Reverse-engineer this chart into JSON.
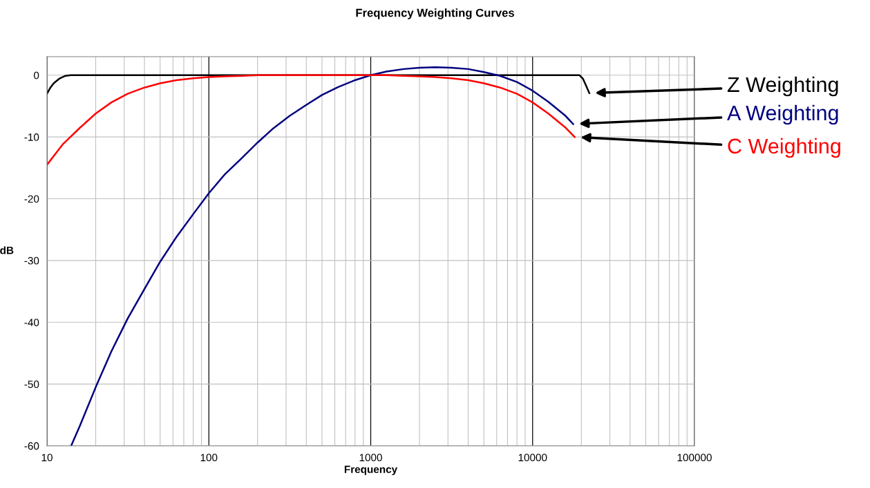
{
  "chart_data": {
    "type": "line",
    "title": "Frequency Weighting Curves",
    "xlabel": "Frequency",
    "ylabel": "dB",
    "log": "x",
    "xlim": [
      10,
      100000
    ],
    "xticks": [
      10,
      100,
      1000,
      10000,
      100000
    ],
    "ylim": [
      -60,
      3
    ],
    "yticks": [
      0,
      -10,
      -20,
      -30,
      -40,
      -50,
      -60
    ],
    "grid": true,
    "legend": false,
    "marker": "none",
    "line_style": "solid",
    "series": [
      {
        "name": "Z Weighting",
        "color": "#000000",
        "x": [
          10,
          10.5,
          11,
          12,
          13,
          14,
          16,
          20,
          50,
          100,
          1000,
          10000,
          18000,
          19500,
          20500,
          21500,
          22400
        ],
        "values": [
          -3,
          -2.0,
          -1.3,
          -0.5,
          -0.1,
          0,
          0,
          0,
          0,
          0,
          0,
          0,
          0,
          0,
          -0.6,
          -1.8,
          -2.9
        ]
      },
      {
        "name": "A Weighting",
        "color": "#000080",
        "x": [
          14.1,
          16,
          20,
          25,
          31.5,
          40,
          50,
          63,
          80,
          100,
          125,
          160,
          200,
          250,
          315,
          400,
          500,
          630,
          800,
          1000,
          1250,
          1600,
          2000,
          2500,
          3150,
          4000,
          5000,
          6300,
          8000,
          10000,
          12500,
          16000,
          17800
        ],
        "values": [
          -60,
          -56.7,
          -50.5,
          -44.7,
          -39.4,
          -34.6,
          -30.2,
          -26.2,
          -22.5,
          -19.1,
          -16.1,
          -13.4,
          -10.9,
          -8.6,
          -6.6,
          -4.8,
          -3.2,
          -1.9,
          -0.8,
          0,
          0.6,
          1.0,
          1.2,
          1.3,
          1.2,
          1.0,
          0.5,
          -0.1,
          -1.1,
          -2.5,
          -4.3,
          -6.6,
          -7.9
        ]
      },
      {
        "name": "C Weighting",
        "color": "#ff0000",
        "x": [
          10,
          12.5,
          16,
          20,
          25,
          31.5,
          40,
          50,
          63,
          80,
          100,
          125,
          160,
          200,
          1000,
          1250,
          1600,
          2000,
          2500,
          3150,
          4000,
          5000,
          6300,
          8000,
          10000,
          12500,
          16000,
          18200
        ],
        "values": [
          -14.5,
          -11.2,
          -8.5,
          -6.2,
          -4.4,
          -3.0,
          -2.0,
          -1.3,
          -0.8,
          -0.5,
          -0.3,
          -0.2,
          -0.1,
          0,
          0,
          0,
          -0.1,
          -0.2,
          -0.3,
          -0.5,
          -0.8,
          -1.3,
          -2.0,
          -3.0,
          -4.4,
          -6.2,
          -8.5,
          -10.0
        ]
      }
    ]
  }
}
